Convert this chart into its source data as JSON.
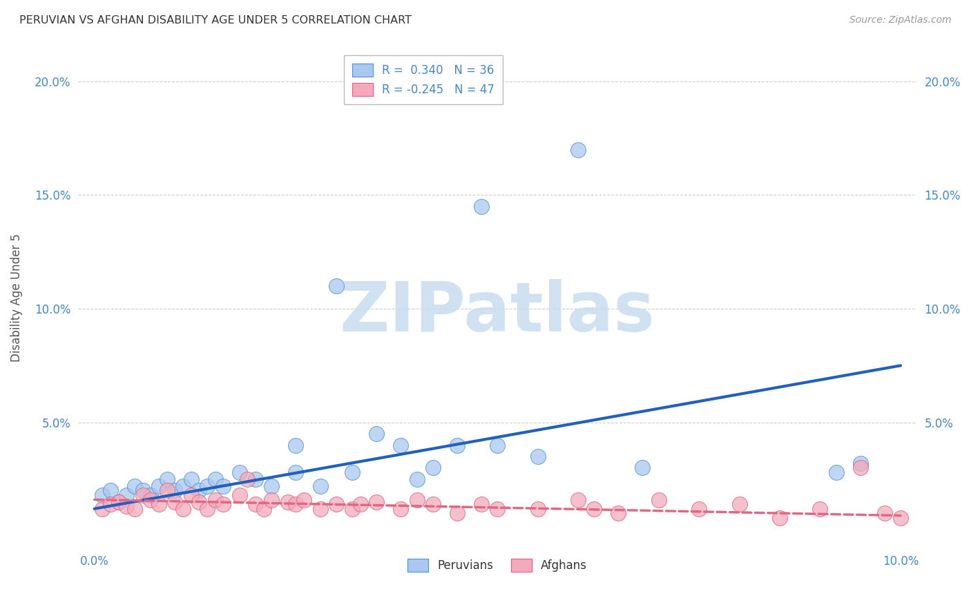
{
  "title": "PERUVIAN VS AFGHAN DISABILITY AGE UNDER 5 CORRELATION CHART",
  "source": "Source: ZipAtlas.com",
  "ylabel": "Disability Age Under 5",
  "xlim": [
    -0.002,
    0.102
  ],
  "ylim": [
    -0.005,
    0.215
  ],
  "xticks": [
    0.0,
    0.1
  ],
  "yticks": [
    0.05,
    0.1,
    0.15,
    0.2
  ],
  "peruvian_color": "#A8C8F0",
  "afghan_color": "#F4AABB",
  "peruvian_edge_color": "#5090D0",
  "afghan_edge_color": "#E06080",
  "peruvian_line_color": "#2060C0",
  "afghan_line_color": "#E06880",
  "peruvian_R": 0.34,
  "peruvian_N": 36,
  "afghan_R": -0.245,
  "afghan_N": 47,
  "peru_line_x0": 0.0,
  "peru_line_y0": 0.012,
  "peru_line_x1": 0.1,
  "peru_line_y1": 0.075,
  "afg_line_x0": 0.0,
  "afg_line_y0": 0.016,
  "afg_line_x1": 0.1,
  "afg_line_y1": 0.009,
  "peruvians_x": [
    0.001,
    0.002,
    0.003,
    0.004,
    0.005,
    0.006,
    0.007,
    0.008,
    0.009,
    0.01,
    0.011,
    0.012,
    0.013,
    0.014,
    0.015,
    0.016,
    0.018,
    0.02,
    0.022,
    0.025,
    0.028,
    0.03,
    0.038,
    0.042,
    0.048,
    0.05,
    0.055,
    0.06,
    0.068,
    0.092,
    0.095,
    0.032,
    0.025,
    0.04,
    0.045,
    0.035
  ],
  "peruvians_y": [
    0.018,
    0.02,
    0.015,
    0.018,
    0.022,
    0.02,
    0.018,
    0.022,
    0.025,
    0.02,
    0.022,
    0.025,
    0.02,
    0.022,
    0.025,
    0.022,
    0.028,
    0.025,
    0.022,
    0.028,
    0.022,
    0.11,
    0.04,
    0.03,
    0.145,
    0.04,
    0.035,
    0.17,
    0.03,
    0.028,
    0.032,
    0.028,
    0.04,
    0.025,
    0.04,
    0.045
  ],
  "afghans_x": [
    0.001,
    0.002,
    0.003,
    0.004,
    0.005,
    0.006,
    0.007,
    0.008,
    0.009,
    0.01,
    0.011,
    0.012,
    0.013,
    0.014,
    0.015,
    0.016,
    0.018,
    0.019,
    0.02,
    0.021,
    0.022,
    0.024,
    0.025,
    0.026,
    0.028,
    0.03,
    0.032,
    0.033,
    0.035,
    0.038,
    0.04,
    0.042,
    0.045,
    0.048,
    0.05,
    0.055,
    0.06,
    0.062,
    0.065,
    0.07,
    0.075,
    0.08,
    0.085,
    0.09,
    0.095,
    0.098,
    0.1
  ],
  "afghans_y": [
    0.012,
    0.014,
    0.015,
    0.013,
    0.012,
    0.018,
    0.016,
    0.014,
    0.02,
    0.015,
    0.012,
    0.018,
    0.015,
    0.012,
    0.016,
    0.014,
    0.018,
    0.025,
    0.014,
    0.012,
    0.016,
    0.015,
    0.014,
    0.016,
    0.012,
    0.014,
    0.012,
    0.014,
    0.015,
    0.012,
    0.016,
    0.014,
    0.01,
    0.014,
    0.012,
    0.012,
    0.016,
    0.012,
    0.01,
    0.016,
    0.012,
    0.014,
    0.008,
    0.012,
    0.03,
    0.01,
    0.008
  ],
  "background_color": "#FFFFFF",
  "grid_color": "#CCCCCC",
  "tick_label_color": "#4488CC",
  "title_color": "#333333",
  "source_color": "#999999",
  "ylabel_color": "#555555"
}
